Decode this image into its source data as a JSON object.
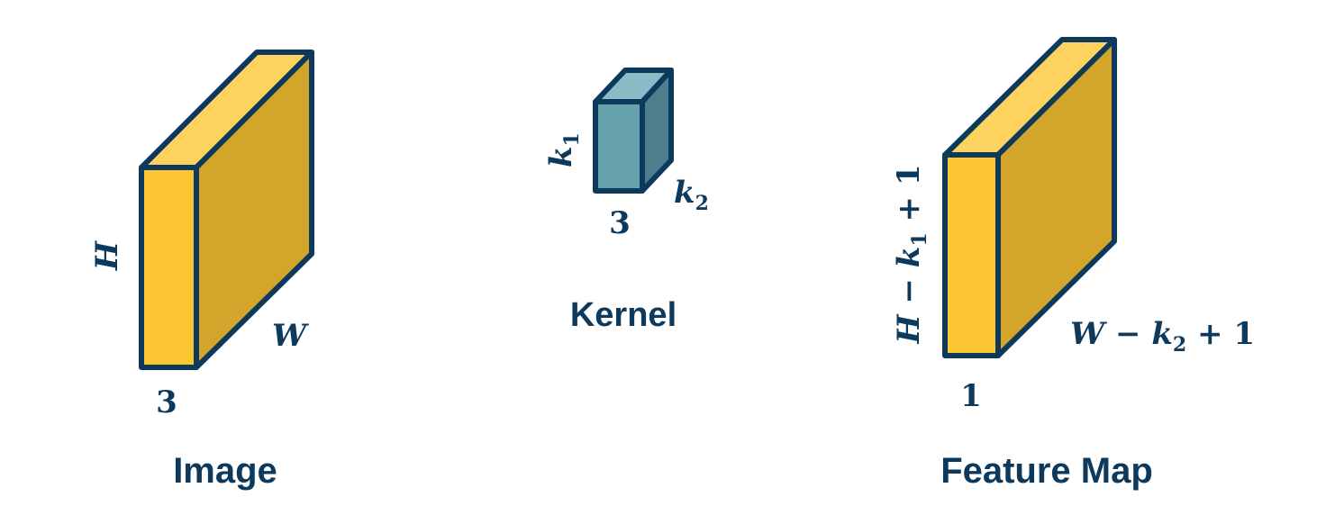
{
  "colors": {
    "outline": "#0d3a5c",
    "text": "#0d3a5c",
    "image_front": "#fcc633",
    "image_top": "#fdd25e",
    "image_side": "#d4a52b",
    "kernel_front": "#66a1ad",
    "kernel_top": "#8cbac5",
    "kernel_side": "#4e7f8e"
  },
  "image": {
    "height_label": "H",
    "width_label": "W",
    "depth_label": "3",
    "caption": "Image"
  },
  "kernel": {
    "height_label": "k",
    "height_sub": "1",
    "width_label": "k",
    "width_sub": "2",
    "depth_label": "3",
    "caption": "Kernel"
  },
  "feature_map": {
    "height_label_a": "H − k",
    "height_sub": "1",
    "height_label_b": " + 1",
    "width_label_a": "W − k",
    "width_sub": "2",
    "width_label_b": " + 1",
    "depth_label": "1",
    "caption": "Feature Map"
  }
}
